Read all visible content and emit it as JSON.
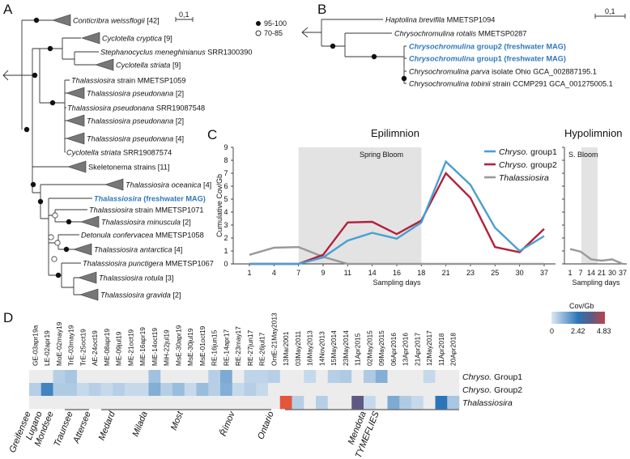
{
  "panels": {
    "a": "A",
    "b": "B",
    "c": "C",
    "d": "D"
  },
  "legend_support": [
    {
      "symbol": "filled",
      "label": "95-100"
    },
    {
      "symbol": "open",
      "label": "70-85"
    }
  ],
  "scale_a": "0,1",
  "scale_b": "0,1",
  "tree_a": [
    {
      "italic": "Conticribra weissflogii",
      "rest": " [42]"
    },
    {
      "italic": "Cyclotella cryptica",
      "rest": " [9]"
    },
    {
      "italic": "Stephanocyclus meneghinianus",
      "rest": " SRR1300390"
    },
    {
      "italic": "Cyclotella striata",
      "rest": " [9]"
    },
    {
      "italic": "Thalassiosira",
      "rest": " strain MMETSP1059"
    },
    {
      "italic": "Thalassiosira pseudonana",
      "rest": " [2]"
    },
    {
      "italic": "Thalassiosira pseudonana",
      "rest": " SRR19087548"
    },
    {
      "italic": "Thalassiosira pseudonana",
      "rest": " [2]"
    },
    {
      "italic": "Thalassiosira pseudonana",
      "rest": " [4]"
    },
    {
      "italic": "Cyclotella striata",
      "rest": " SRR19087574"
    },
    {
      "italic": "",
      "rest": "Skeletonema strains [11]"
    },
    {
      "italic": "Thalassiosira oceanica",
      "rest": " [4]"
    },
    {
      "italic": "Thalassiosira",
      "rest": " (freshwater MAG)",
      "highlight": true
    },
    {
      "italic": "Thalassiosira",
      "rest": " strain MMETSP1071"
    },
    {
      "italic": "Thalassiosira minuscula",
      "rest": " [2]"
    },
    {
      "italic": "Detonula confervacea",
      "rest": " MMETSP1058"
    },
    {
      "italic": "Thalassiosira antarctica",
      "rest": " [4]"
    },
    {
      "italic": "Thalassiosira punctigera",
      "rest": " MMETSP1067"
    },
    {
      "italic": "Thalassiosira rotula",
      "rest": " [3]"
    },
    {
      "italic": "Thalassiosira gravida",
      "rest": " [2]"
    }
  ],
  "tree_b": [
    {
      "italic": "Haptolina brevifila",
      "rest": " MMETSP1094"
    },
    {
      "italic": "Chrysochromulina rotalis",
      "rest": " MMETSP0287"
    },
    {
      "italic": "Chrysochromulina",
      "rest": " group2  (freshwater MAG)",
      "highlight": true
    },
    {
      "italic": "Chrysochromulina",
      "rest": " group1  (freshwater MAG)",
      "highlight": true
    },
    {
      "italic": "Chrysochromulina parva",
      "rest": " isolate Ohio GCA_002887195.1"
    },
    {
      "italic": "Chrysochromulina tobinii",
      "rest": " strain CCMP291 GCA_001275005.1"
    }
  ],
  "chart_data": [
    {
      "type": "line",
      "title": "Epilimnion",
      "xlabel": "Sampling days",
      "ylabel": "Cumulative Cov/Gb",
      "ylim": [
        0,
        9
      ],
      "yticks": [
        "0",
        "1",
        "2",
        "3",
        "4",
        "5",
        "6",
        "7",
        "8",
        "9"
      ],
      "categories": [
        "1",
        "4",
        "7",
        "9",
        "11",
        "14",
        "16",
        "18",
        "21",
        "23",
        "25",
        "30",
        "37"
      ],
      "shaded_region": {
        "label": "Spring Bloom",
        "from": "7",
        "to": "18"
      },
      "legend_position": "top-right",
      "series": [
        {
          "name_italic": "Chryso.",
          "name_rest": " group1",
          "color": "#4a9fd0",
          "values": [
            0,
            0,
            0,
            0.5,
            1.8,
            2.4,
            1.95,
            3.2,
            7.9,
            6.1,
            2.8,
            1.0,
            2.15
          ]
        },
        {
          "name_italic": "Chryso.",
          "name_rest": " group2",
          "color": "#b3203b",
          "values": [
            0,
            0,
            0,
            0.7,
            3.2,
            3.25,
            2.3,
            3.35,
            7.0,
            5.1,
            1.3,
            0.9,
            2.7
          ]
        },
        {
          "name_italic": "Thalassiosira",
          "name_rest": "",
          "color": "#999999",
          "values": [
            0.7,
            1.25,
            1.3,
            0.55,
            0,
            0,
            0,
            0,
            0,
            0,
            0,
            0,
            0
          ]
        }
      ]
    },
    {
      "type": "line",
      "title": "Hypolimnion",
      "xlabel": "Sampling days",
      "ylim": [
        0,
        9
      ],
      "categories": [
        "1",
        "7",
        "14",
        "21",
        "30",
        "37"
      ],
      "shaded_region": {
        "label": "S. Bloom",
        "from": "7",
        "to": "14"
      },
      "series": [
        {
          "name": "Thalassiosira",
          "color": "#999999",
          "values": [
            1.15,
            0.95,
            0.35,
            0.25,
            0.35,
            0
          ]
        }
      ]
    },
    {
      "type": "heatmap",
      "colorbar": {
        "title": "Cov/Gb",
        "ticks": [
          "0",
          "2.42",
          "4.83"
        ],
        "min": 0,
        "mid": 2.42,
        "max": 4.83
      },
      "columns": [
        "GE-03apr19a",
        "LE-02apr19",
        "MoE-02may19",
        "TrE-03may19",
        "TrE-25oct19",
        "AE-24oct19",
        "ME-08apr19",
        "ME-09jul19",
        "ME-21oct19",
        "MiE-16apr19",
        "MiE-14oct19",
        "MiH-22jul19",
        "MsE-30apr19",
        "MsE-30jul19",
        "MsE-01oct19",
        "RE-16jun15",
        "RE-14apr17",
        "RE-23may17",
        "RE-27jun17",
        "RE-26jul17",
        "OntE-21May2013",
        "13Mar2001",
        "03May2011",
        "16May2013",
        "14Nov2013",
        "15May2014",
        "23May2014",
        "11Apr2015",
        "02May2015",
        "09May2015",
        "06Apr2016",
        "13Apr2016",
        "21Apr2017",
        "12May2017",
        "11Apr2018",
        "20Apr2018"
      ],
      "rows": [
        {
          "italic": "Chryso.",
          "rest": " Group1",
          "values": [
            0,
            0,
            0.5,
            0.7,
            0,
            0,
            0,
            0,
            0,
            0,
            0.8,
            0,
            0,
            0,
            0,
            0.5,
            1.3,
            0,
            0.4,
            0.4,
            0.5,
            0,
            0,
            0.3,
            0,
            0.5,
            0.6,
            0,
            0.6,
            1.2,
            0,
            0,
            0,
            0.3,
            0,
            0
          ]
        },
        {
          "italic": "Chryso.",
          "rest": " Group2",
          "values": [
            0.5,
            2.1,
            0.6,
            0.6,
            0.3,
            0.5,
            0.3,
            0.5,
            0.3,
            0.3,
            1.2,
            0.5,
            0.9,
            0.3,
            0.9,
            0.5,
            1.2,
            0.3,
            0.5,
            0.3,
            0,
            0,
            0,
            0,
            0,
            0,
            0,
            0,
            0,
            0,
            0,
            0,
            0,
            0,
            0,
            0
          ]
        },
        {
          "italic": "Thalassiosira",
          "rest": "",
          "values": [
            0,
            0,
            0,
            0,
            0,
            0,
            0,
            0,
            0,
            0,
            0,
            0,
            0,
            0,
            0,
            0,
            0,
            0,
            0,
            0,
            0,
            4.83,
            0.5,
            0,
            0.5,
            0,
            0,
            3.6,
            0.3,
            0,
            1.3,
            0.6,
            0.3,
            0,
            2.4,
            0.7
          ]
        }
      ],
      "lakes": [
        "Greifensee",
        "Lugano",
        "Mondsee",
        "Traunsee",
        "Attersee",
        "Medard",
        "Milada",
        "Most",
        "Římov",
        "Ontario",
        "Mendota",
        "TYMEFLIES"
      ]
    }
  ]
}
